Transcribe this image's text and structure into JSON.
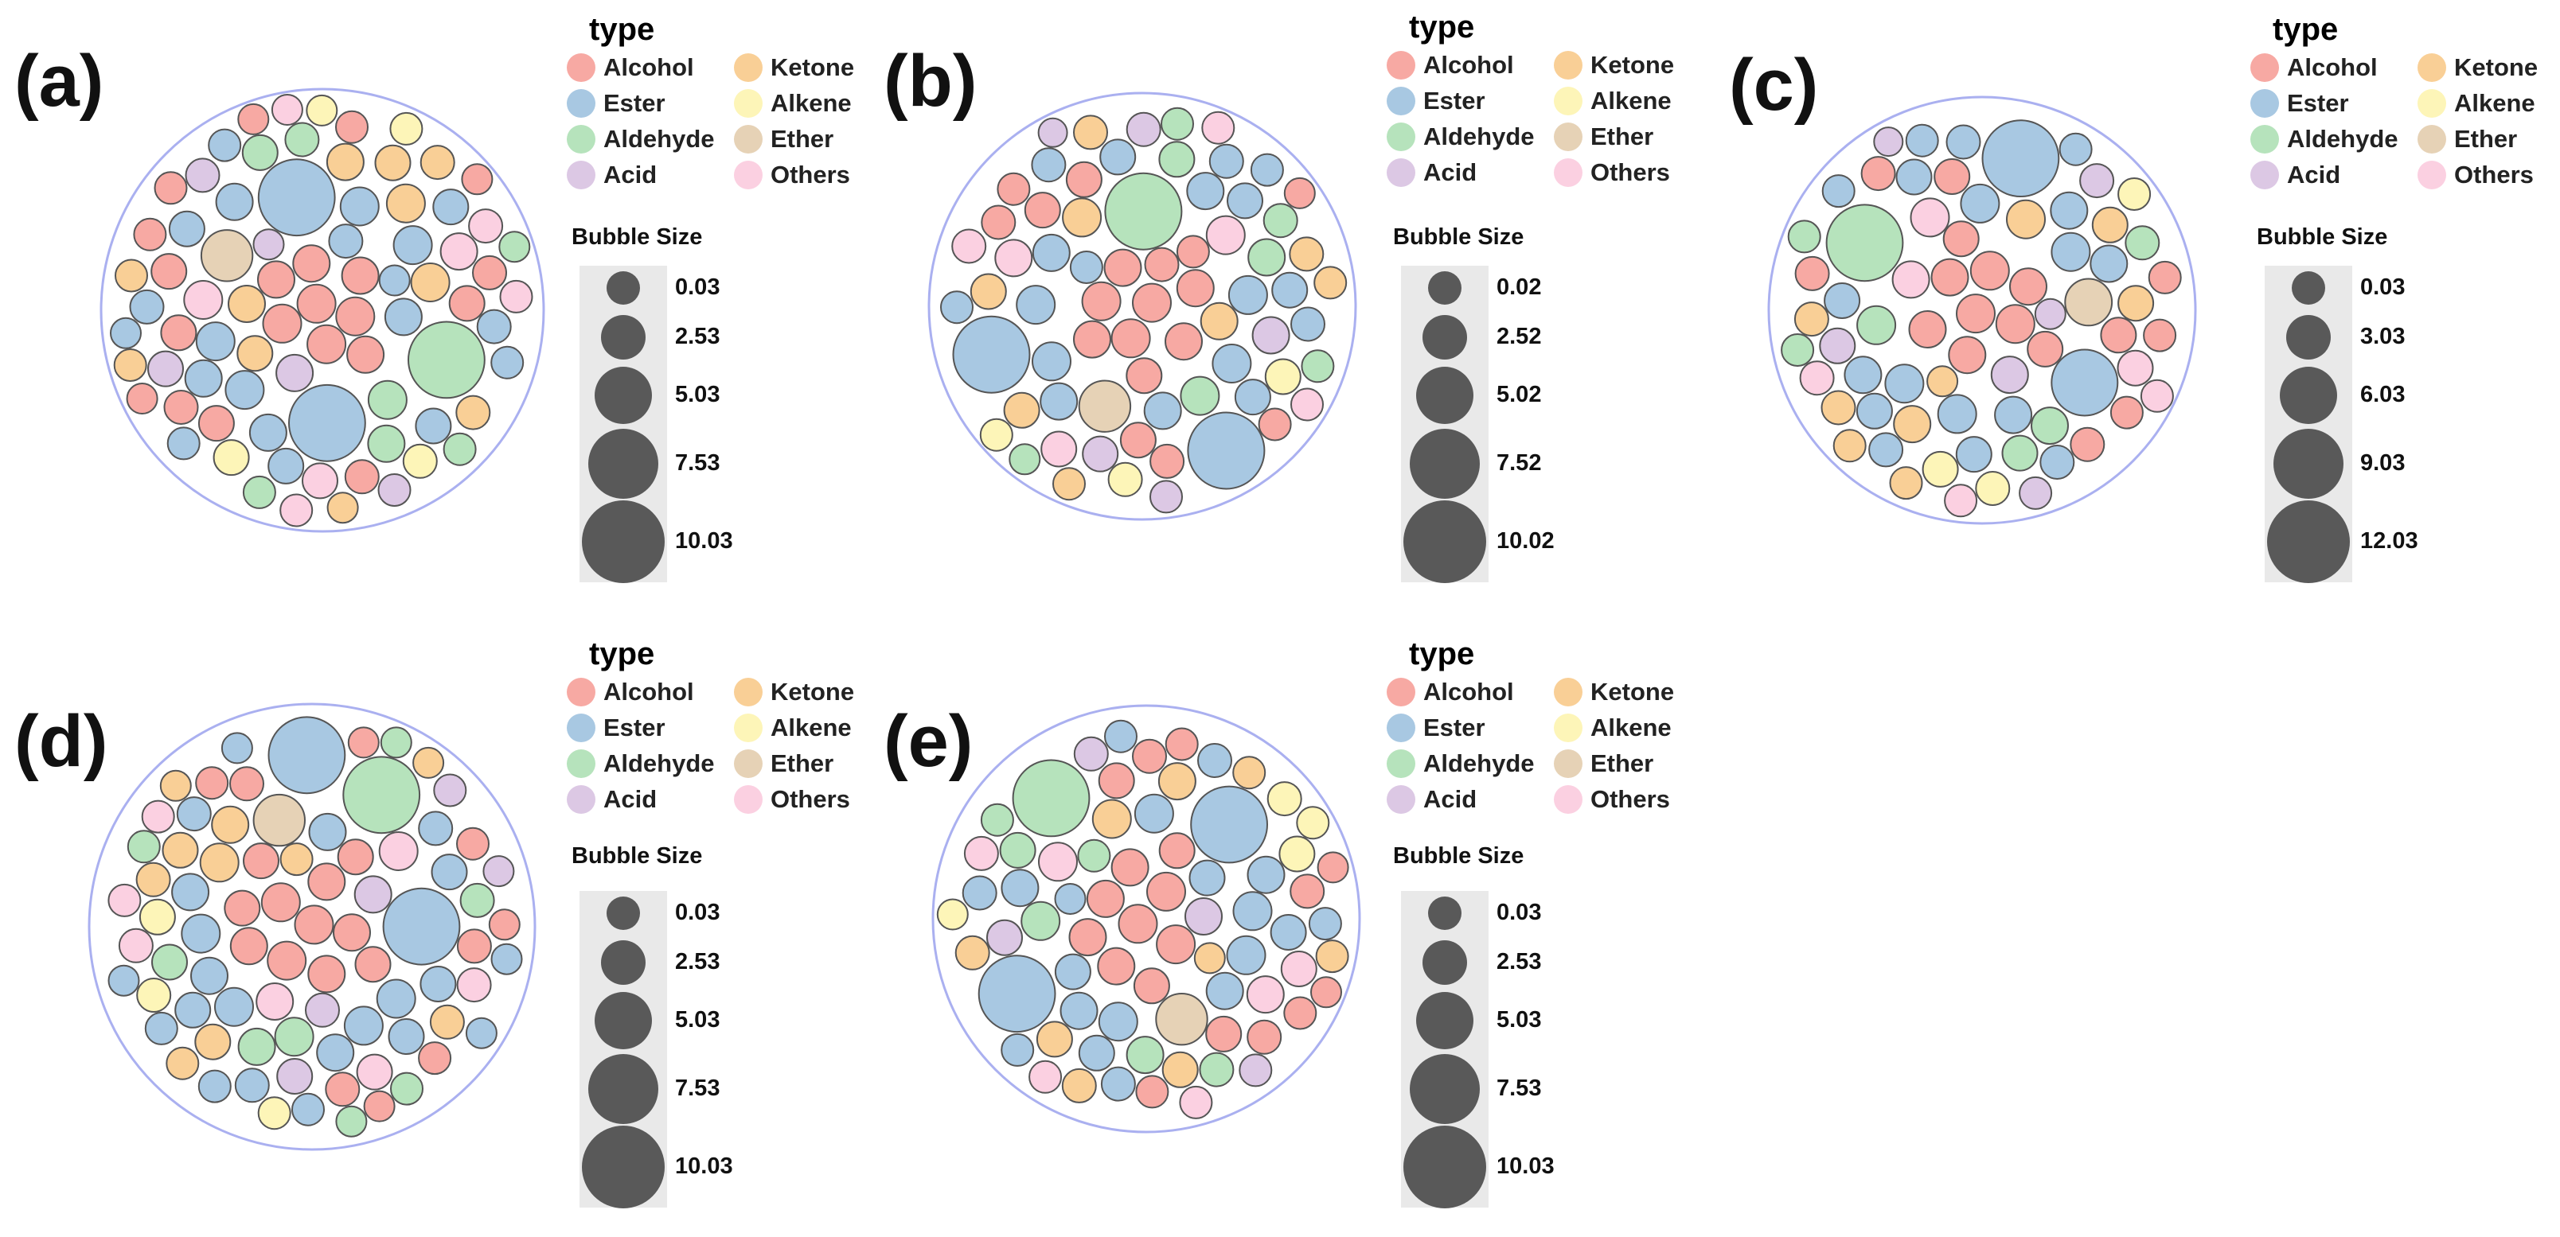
{
  "colors": {
    "Alcohol": "#f7a9a3",
    "Ester": "#a8c8e2",
    "Aldehyde": "#b6e3bc",
    "Acid": "#dcc8e4",
    "Ketone": "#f9cf96",
    "Alkene": "#fdf5b8",
    "Ether": "#e6d2b6",
    "Others": "#fbd0e1",
    "container_stroke": "#aab0f0",
    "bubble_stroke": "#555555",
    "size_bubble": "#595959"
  },
  "legend": {
    "title": "type",
    "items": [
      "Alcohol",
      "Ketone",
      "Ester",
      "Alkene",
      "Aldehyde",
      "Ether",
      "Acid",
      "Others"
    ],
    "size_title": "Bubble Size"
  },
  "chart_data": [
    {
      "type": "packed-bubble",
      "panel": "(a)",
      "size_legend": [
        "0.03",
        "2.53",
        "5.03",
        "7.53",
        "10.03"
      ],
      "bubble_counts": {
        "Alcohol": 22,
        "Ester": 24,
        "Aldehyde": 9,
        "Acid": 6,
        "Ketone": 12,
        "Alkene": 4,
        "Ether": 1,
        "Others": 8
      },
      "large_bubbles": [
        {
          "type": "Ester",
          "value": 10.0
        },
        {
          "type": "Ester",
          "value": 10.0
        },
        {
          "type": "Aldehyde",
          "value": 10.0
        },
        {
          "type": "Ether",
          "value": 4.5
        }
      ]
    },
    {
      "type": "packed-bubble",
      "panel": "(b)",
      "size_legend": [
        "0.02",
        "2.52",
        "5.02",
        "7.52",
        "10.02"
      ],
      "bubble_counts": {
        "Alcohol": 20,
        "Ester": 24,
        "Aldehyde": 9,
        "Acid": 7,
        "Ketone": 10,
        "Alkene": 4,
        "Ether": 1,
        "Others": 8
      },
      "large_bubbles": [
        {
          "type": "Aldehyde",
          "value": 10.0
        },
        {
          "type": "Ester",
          "value": 10.0
        },
        {
          "type": "Ester",
          "value": 10.0
        },
        {
          "type": "Ether",
          "value": 4.5
        }
      ]
    },
    {
      "type": "packed-bubble",
      "panel": "(c)",
      "size_legend": [
        "0.03",
        "3.03",
        "6.03",
        "9.03",
        "12.03"
      ],
      "bubble_counts": {
        "Alcohol": 20,
        "Ester": 24,
        "Aldehyde": 9,
        "Acid": 6,
        "Ketone": 10,
        "Alkene": 4,
        "Ether": 1,
        "Others": 8
      },
      "large_bubbles": [
        {
          "type": "Ester",
          "value": 12.0
        },
        {
          "type": "Aldehyde",
          "value": 12.0
        },
        {
          "type": "Ester",
          "value": 9.0
        },
        {
          "type": "Ether",
          "value": 4.5
        }
      ]
    },
    {
      "type": "packed-bubble",
      "panel": "(d)",
      "size_legend": [
        "0.03",
        "2.53",
        "5.03",
        "7.53",
        "10.03"
      ],
      "bubble_counts": {
        "Alcohol": 20,
        "Ester": 24,
        "Aldehyde": 9,
        "Acid": 6,
        "Ketone": 10,
        "Alkene": 4,
        "Ether": 1,
        "Others": 9
      },
      "large_bubbles": [
        {
          "type": "Aldehyde",
          "value": 10.0
        },
        {
          "type": "Ester",
          "value": 10.0
        },
        {
          "type": "Ester",
          "value": 10.0
        },
        {
          "type": "Ether",
          "value": 4.5
        }
      ]
    },
    {
      "type": "packed-bubble",
      "panel": "(e)",
      "size_legend": [
        "0.03",
        "2.53",
        "5.03",
        "7.53",
        "10.03"
      ],
      "bubble_counts": {
        "Alcohol": 20,
        "Ester": 24,
        "Aldehyde": 9,
        "Acid": 6,
        "Ketone": 10,
        "Alkene": 4,
        "Ether": 1,
        "Others": 8
      },
      "large_bubbles": [
        {
          "type": "Ester",
          "value": 10.0
        },
        {
          "type": "Ester",
          "value": 10.0
        },
        {
          "type": "Aldehyde",
          "value": 10.0
        },
        {
          "type": "Ether",
          "value": 4.5
        }
      ]
    }
  ]
}
